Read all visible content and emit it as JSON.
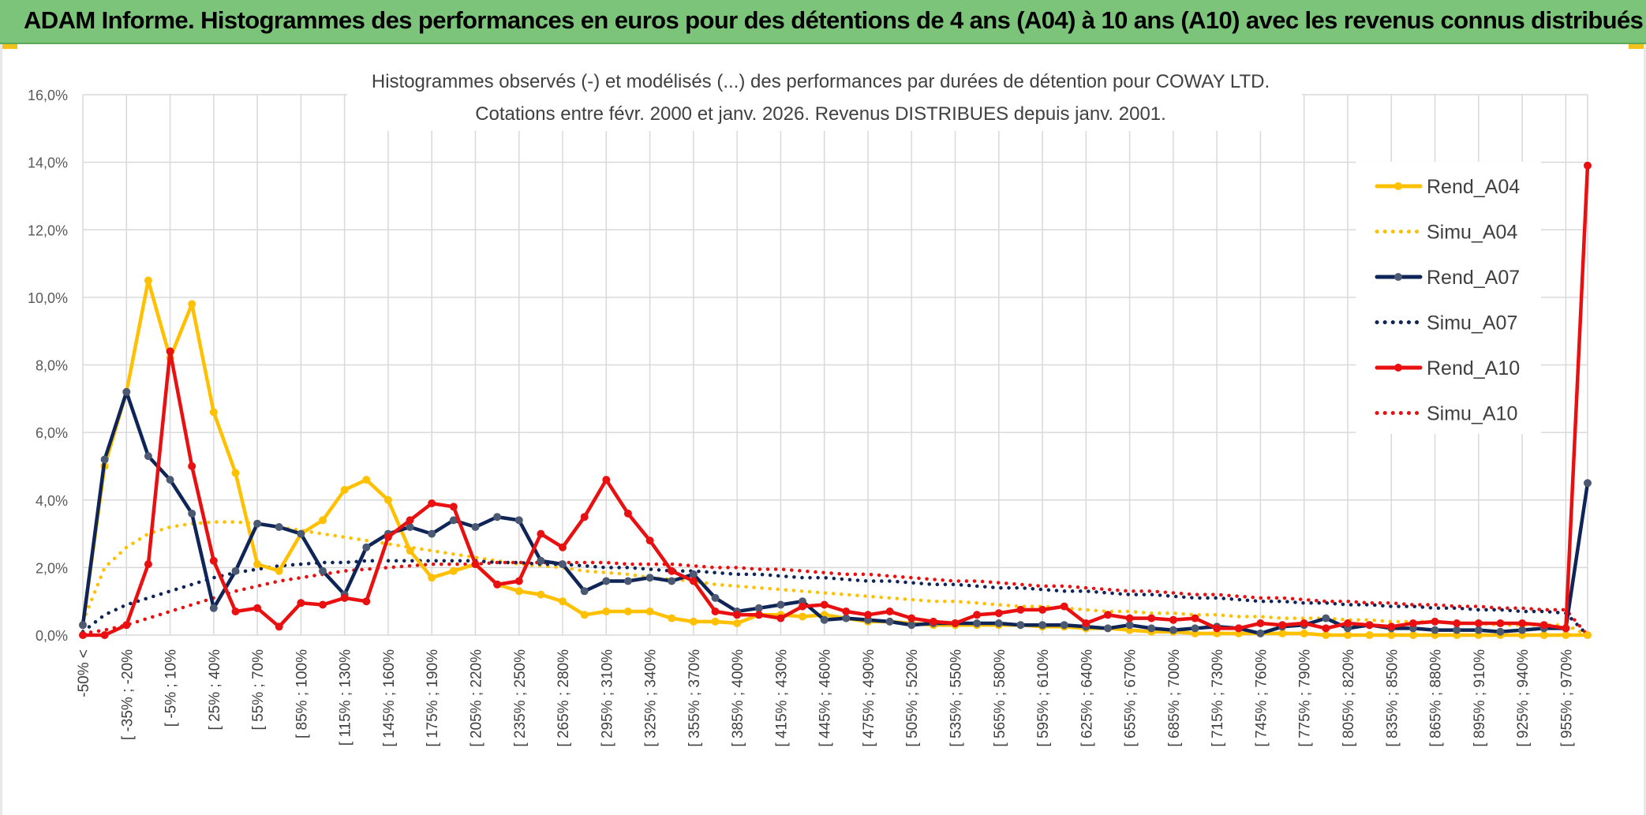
{
  "banner": {
    "title": "ADAM Informe. Histogrammes des performances en euros pour des détentions de 4 ans (A04) à 10 ans (A10) avec les revenus connus distribués"
  },
  "chart_data": {
    "type": "line",
    "title": "Histogrammes observés (-) et modélisés (...) des performances par durées de détention pour COWAY LTD.",
    "subtitle": "Cotations entre févr. 2000 et janv. 2026. Revenus DISTRIBUES depuis janv. 2001.",
    "xlabel": "",
    "ylabel": "",
    "ylim": [
      0,
      16
    ],
    "y_ticks": [
      "0,0%",
      "2,0%",
      "4,0%",
      "6,0%",
      "8,0%",
      "10,0%",
      "12,0%",
      "14,0%",
      "16,0%"
    ],
    "grid": true,
    "legend_position": "top-right",
    "x_tick_labels": [
      "-50% <",
      "[ -35% ; -20%",
      "[ -5% ; 10%",
      "[ 25% ; 40%",
      "[ 55% ; 70%",
      "[ 85% ; 100%",
      "[ 115% ; 130%",
      "[ 145% ; 160%",
      "[ 175% ; 190%",
      "[ 205% ; 220%",
      "[ 235% ; 250%",
      "[ 265% ; 280%",
      "[ 295% ; 310%",
      "[ 325% ; 340%",
      "[ 355% ; 370%",
      "[ 385% ; 400%",
      "[ 415% ; 430%",
      "[ 445% ; 460%",
      "[ 475% ; 490%",
      "[ 505% ; 520%",
      "[ 535% ; 550%",
      "[ 565% ; 580%",
      "[ 595% ; 610%",
      "[ 625% ; 640%",
      "[ 655% ; 670%",
      "[ 685% ; 700%",
      "[ 715% ; 730%",
      "[ 745% ; 760%",
      "[ 775% ; 790%",
      "[ 805% ; 820%",
      "[ 835% ; 850%",
      "[ 865% ; 880%",
      "[ 895% ; 910%",
      "[ 925% ; 940%",
      "[ 955% ; 970%"
    ],
    "n_points": 70,
    "series": [
      {
        "name": "Rend_A04",
        "style": "solid",
        "color": "#ffc000",
        "values": [
          0.3,
          5.0,
          7.2,
          10.5,
          8.2,
          9.8,
          6.6,
          4.8,
          2.1,
          1.9,
          3.0,
          3.4,
          4.3,
          4.6,
          4.0,
          2.5,
          1.7,
          1.9,
          2.1,
          1.5,
          1.3,
          1.2,
          1.0,
          0.6,
          0.7,
          0.7,
          0.7,
          0.5,
          0.4,
          0.4,
          0.35,
          0.6,
          0.6,
          0.55,
          0.6,
          0.5,
          0.4,
          0.4,
          0.35,
          0.3,
          0.3,
          0.3,
          0.3,
          0.3,
          0.25,
          0.25,
          0.2,
          0.2,
          0.15,
          0.1,
          0.1,
          0.05,
          0.05,
          0.05,
          0.05,
          0.05,
          0.05,
          0.0,
          0.0,
          0.0,
          0.0,
          0.0,
          0.0,
          0.0,
          0.0,
          0.0,
          0.0,
          0.0,
          0.0,
          0.0
        ]
      },
      {
        "name": "Simu_A04",
        "style": "dotted",
        "color": "#ffc000",
        "values": [
          0.4,
          2.0,
          2.6,
          3.0,
          3.2,
          3.3,
          3.35,
          3.35,
          3.3,
          3.2,
          3.1,
          3.0,
          2.9,
          2.8,
          2.7,
          2.6,
          2.5,
          2.4,
          2.3,
          2.2,
          2.1,
          2.05,
          2.0,
          1.9,
          1.85,
          1.8,
          1.7,
          1.65,
          1.6,
          1.5,
          1.45,
          1.4,
          1.35,
          1.3,
          1.25,
          1.2,
          1.15,
          1.1,
          1.05,
          1.0,
          1.0,
          0.95,
          0.9,
          0.85,
          0.85,
          0.8,
          0.75,
          0.7,
          0.7,
          0.65,
          0.65,
          0.6,
          0.6,
          0.55,
          0.55,
          0.5,
          0.5,
          0.5,
          0.45,
          0.45,
          0.4,
          0.4,
          0.4,
          0.35,
          0.35,
          0.3,
          0.3,
          0.3,
          0.3,
          0.0
        ]
      },
      {
        "name": "Rend_A07",
        "style": "solid",
        "color": "#0f2557",
        "values": [
          0.3,
          5.2,
          7.2,
          5.3,
          4.6,
          3.6,
          0.8,
          1.9,
          3.3,
          3.2,
          3.0,
          1.9,
          1.2,
          2.6,
          3.0,
          3.2,
          3.0,
          3.4,
          3.2,
          3.5,
          3.4,
          2.2,
          2.1,
          1.3,
          1.6,
          1.6,
          1.7,
          1.6,
          1.8,
          1.1,
          0.7,
          0.8,
          0.9,
          1.0,
          0.45,
          0.5,
          0.45,
          0.4,
          0.3,
          0.35,
          0.35,
          0.35,
          0.35,
          0.3,
          0.3,
          0.3,
          0.25,
          0.2,
          0.3,
          0.2,
          0.15,
          0.2,
          0.25,
          0.2,
          0.05,
          0.25,
          0.3,
          0.5,
          0.2,
          0.3,
          0.2,
          0.2,
          0.15,
          0.15,
          0.15,
          0.1,
          0.15,
          0.2,
          0.2,
          4.5
        ]
      },
      {
        "name": "Simu_A07",
        "style": "dotted",
        "color": "#0f2557",
        "values": [
          0.1,
          0.6,
          0.9,
          1.1,
          1.3,
          1.5,
          1.7,
          1.85,
          1.95,
          2.05,
          2.1,
          2.15,
          2.15,
          2.2,
          2.2,
          2.2,
          2.2,
          2.2,
          2.2,
          2.15,
          2.15,
          2.1,
          2.1,
          2.05,
          2.0,
          2.0,
          1.95,
          1.9,
          1.9,
          1.85,
          1.8,
          1.8,
          1.75,
          1.7,
          1.7,
          1.65,
          1.6,
          1.6,
          1.55,
          1.5,
          1.5,
          1.45,
          1.4,
          1.4,
          1.35,
          1.3,
          1.3,
          1.25,
          1.2,
          1.2,
          1.15,
          1.1,
          1.1,
          1.05,
          1.0,
          1.0,
          0.95,
          0.95,
          0.9,
          0.9,
          0.85,
          0.85,
          0.8,
          0.8,
          0.75,
          0.75,
          0.7,
          0.7,
          0.65,
          0.0
        ]
      },
      {
        "name": "Rend_A10",
        "style": "solid",
        "color": "#e81010",
        "values": [
          0.0,
          0.0,
          0.3,
          2.1,
          8.4,
          5.0,
          2.2,
          0.7,
          0.8,
          0.25,
          0.95,
          0.9,
          1.1,
          1.0,
          2.9,
          3.4,
          3.9,
          3.8,
          2.1,
          1.5,
          1.6,
          3.0,
          2.6,
          3.5,
          4.6,
          3.6,
          2.8,
          1.9,
          1.6,
          0.7,
          0.6,
          0.6,
          0.5,
          0.85,
          0.9,
          0.7,
          0.6,
          0.7,
          0.5,
          0.4,
          0.35,
          0.6,
          0.65,
          0.75,
          0.75,
          0.85,
          0.35,
          0.6,
          0.5,
          0.5,
          0.45,
          0.5,
          0.2,
          0.2,
          0.35,
          0.3,
          0.35,
          0.2,
          0.35,
          0.3,
          0.25,
          0.35,
          0.4,
          0.35,
          0.35,
          0.35,
          0.35,
          0.3,
          0.2,
          13.9
        ]
      },
      {
        "name": "Simu_A10",
        "style": "dotted",
        "color": "#e81010",
        "values": [
          0.05,
          0.15,
          0.3,
          0.5,
          0.7,
          0.9,
          1.1,
          1.3,
          1.45,
          1.6,
          1.7,
          1.8,
          1.9,
          1.95,
          2.0,
          2.05,
          2.1,
          2.1,
          2.1,
          2.15,
          2.15,
          2.15,
          2.15,
          2.15,
          2.15,
          2.1,
          2.1,
          2.1,
          2.05,
          2.0,
          2.0,
          1.95,
          1.95,
          1.9,
          1.85,
          1.8,
          1.8,
          1.75,
          1.7,
          1.65,
          1.6,
          1.6,
          1.55,
          1.5,
          1.45,
          1.45,
          1.4,
          1.35,
          1.3,
          1.3,
          1.25,
          1.2,
          1.2,
          1.15,
          1.1,
          1.1,
          1.05,
          1.0,
          1.0,
          0.95,
          0.95,
          0.9,
          0.9,
          0.85,
          0.85,
          0.8,
          0.8,
          0.75,
          0.75,
          0.0
        ]
      }
    ]
  }
}
